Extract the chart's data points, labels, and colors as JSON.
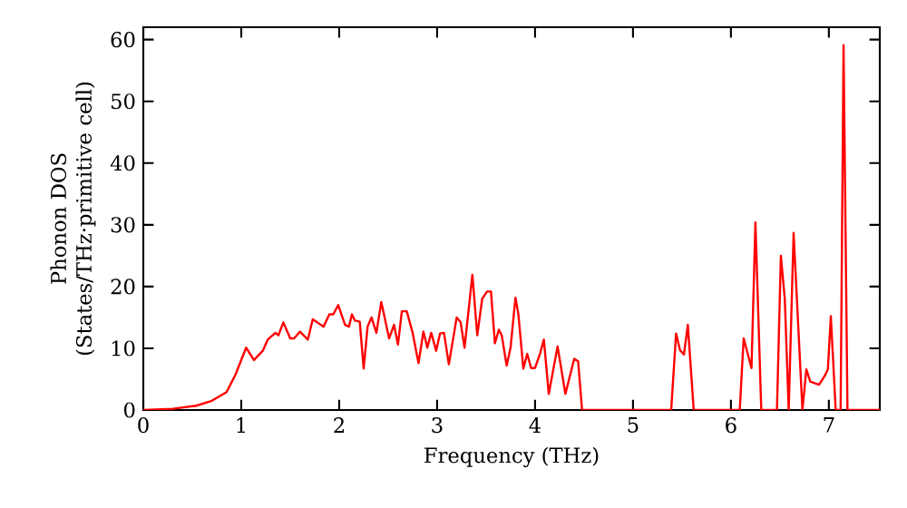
{
  "chart_data": {
    "type": "line",
    "xlabel": "Frequency (THz)",
    "ylabel": "Phonon DOS (States/THz·primitive cell)",
    "xlim": [
      0,
      7.52
    ],
    "ylim": [
      0,
      62
    ],
    "xticks": [
      0,
      1,
      2,
      3,
      4,
      5,
      6,
      7
    ],
    "yticks": [
      0,
      10,
      20,
      30,
      40,
      50,
      60
    ],
    "grid": false,
    "marker": "none",
    "line_style": "solid",
    "series": [
      {
        "color": "#ff0000",
        "x": [
          0,
          0.3,
          0.54,
          0.7,
          0.85,
          0.94,
          1.05,
          1.13,
          1.22,
          1.27,
          1.35,
          1.38,
          1.43,
          1.5,
          1.54,
          1.6,
          1.68,
          1.73,
          1.84,
          1.9,
          1.94,
          1.99,
          2.06,
          2.1,
          2.13,
          2.16,
          2.21,
          2.25,
          2.29,
          2.33,
          2.38,
          2.43,
          2.51,
          2.56,
          2.6,
          2.64,
          2.69,
          2.75,
          2.81,
          2.86,
          2.9,
          2.94,
          2.99,
          3.03,
          3.07,
          3.12,
          3.2,
          3.24,
          3.28,
          3.36,
          3.41,
          3.46,
          3.51,
          3.55,
          3.59,
          3.63,
          3.66,
          3.71,
          3.75,
          3.8,
          3.83,
          3.88,
          3.92,
          3.96,
          4.0,
          4.05,
          4.09,
          4.14,
          4.23,
          4.31,
          4.4,
          4.44,
          4.48,
          5.39,
          5.44,
          5.48,
          5.52,
          5.56,
          5.62,
          6.09,
          6.13,
          6.21,
          6.25,
          6.31,
          6.47,
          6.51,
          6.55,
          6.59,
          6.64,
          6.73,
          6.77,
          6.81,
          6.9,
          6.96,
          6.99,
          7.02,
          7.07,
          7.12,
          7.15,
          7.19,
          7.52
        ],
        "values": [
          0,
          0.2,
          0.7,
          1.5,
          2.9,
          5.7,
          10.1,
          8.1,
          9.6,
          11.4,
          12.5,
          12.1,
          14.2,
          11.6,
          11.6,
          12.7,
          11.4,
          14.7,
          13.5,
          15.5,
          15.5,
          17,
          13.8,
          13.5,
          15.5,
          14.5,
          14.3,
          6.7,
          13.5,
          15,
          12.5,
          17.5,
          11.6,
          13.8,
          10.6,
          16,
          16,
          12.5,
          7.6,
          12.7,
          10.1,
          12.5,
          9.6,
          12.4,
          12.5,
          7.4,
          15,
          14.2,
          10.1,
          21.9,
          12.1,
          18,
          19.2,
          19.2,
          10.8,
          13,
          12.1,
          7.2,
          10.1,
          18.2,
          15.5,
          6.7,
          9.1,
          6.8,
          6.8,
          9.1,
          11.4,
          2.6,
          10.3,
          2.6,
          8.3,
          7.9,
          0,
          0,
          12.4,
          9.7,
          9,
          13.8,
          0,
          0,
          11.6,
          6.8,
          30.4,
          0,
          0,
          25,
          18,
          0,
          28.7,
          0,
          6.6,
          4.6,
          4.1,
          5.6,
          6.6,
          15.2,
          0,
          0,
          59.1,
          0,
          0
        ]
      }
    ]
  }
}
